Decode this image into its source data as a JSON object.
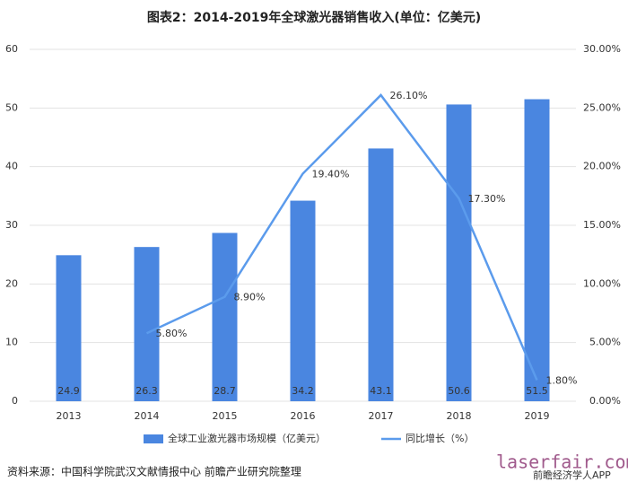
{
  "chart_data": {
    "type": "bar_line",
    "title": "图表2：2014-2019年全球激光器销售收入(单位：亿美元)",
    "categories": [
      "2013",
      "2014",
      "2015",
      "2016",
      "2017",
      "2018",
      "2019"
    ],
    "series": [
      {
        "name": "全球工业激光器市场规模（亿美元）",
        "type": "bar",
        "color": "#4a86e0",
        "values": [
          24.9,
          26.3,
          28.7,
          34.2,
          43.1,
          50.6,
          51.5
        ]
      },
      {
        "name": "同比增长（%）",
        "type": "line",
        "axis": "y2",
        "color": "#5b9bec",
        "values": [
          null,
          5.8,
          8.9,
          19.4,
          26.1,
          17.3,
          1.8
        ],
        "value_labels": [
          null,
          "5.80%",
          "8.90%",
          "19.40%",
          "26.10%",
          "17.30%",
          "1.80%"
        ]
      }
    ],
    "ylim": [
      0,
      60
    ],
    "yticks": [
      0,
      10,
      20,
      30,
      40,
      50,
      60
    ],
    "y2lim": [
      0,
      30
    ],
    "y2ticks": [
      {
        "value": 0,
        "label": "0.00%"
      },
      {
        "value": 5,
        "label": "5.00%"
      },
      {
        "value": 10,
        "label": "10.00%"
      },
      {
        "value": 15,
        "label": "15.00%"
      },
      {
        "value": 20,
        "label": "20.00%"
      },
      {
        "value": 25,
        "label": "25.00%"
      },
      {
        "value": 30,
        "label": "30.00%"
      }
    ],
    "grid": true,
    "legend": "bottom",
    "source": "资料来源：中国科学院武汉文献情报中心 前瞻产业研究院整理",
    "watermark": "laserfair.com",
    "watermark2": "前瞻经济学人APP"
  }
}
